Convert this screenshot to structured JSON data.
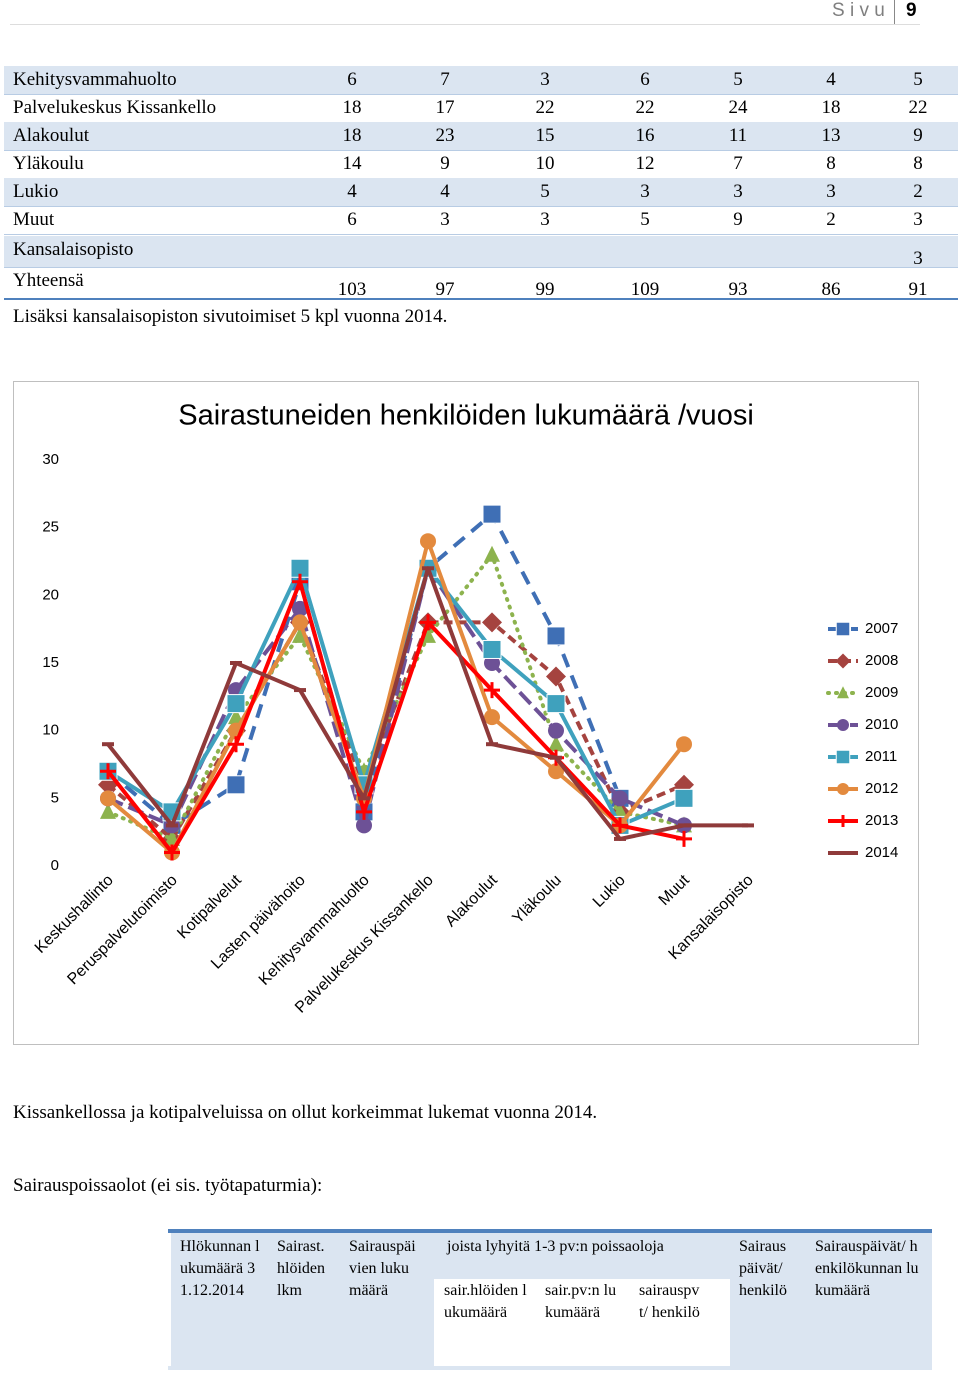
{
  "header": {
    "label": "S i v u",
    "page": "9"
  },
  "table": {
    "rows": [
      [
        "Kehitysvammahuolto",
        6,
        7,
        3,
        6,
        5,
        4,
        5
      ],
      [
        "Palvelukeskus Kissankello",
        18,
        17,
        22,
        22,
        24,
        18,
        22
      ],
      [
        "Alakoulut",
        18,
        23,
        15,
        16,
        11,
        13,
        9
      ],
      [
        "Yläkoulu",
        14,
        9,
        10,
        12,
        7,
        8,
        8
      ],
      [
        "Lukio",
        4,
        4,
        5,
        3,
        3,
        3,
        2
      ],
      [
        "Muut",
        6,
        3,
        3,
        5,
        9,
        2,
        3
      ],
      [
        "Kansalaisopisto",
        null,
        null,
        null,
        null,
        null,
        null,
        3
      ],
      [
        "Yhteensä",
        103,
        97,
        99,
        109,
        93,
        86,
        91
      ]
    ]
  },
  "note": "Lisäksi kansalaisopiston sivutoimiset 5 kpl vuonna 2014.",
  "chart_data": {
    "type": "line",
    "title": "Sairastuneiden henkilöiden lukumäärä /vuosi",
    "categories": [
      "Keskushallinto",
      "Peruspalvelutoimisto",
      "Kotipalvelut",
      "Lasten päivähoito",
      "Kehitysvammahuolto",
      "Palvelukeskus Kissankello",
      "Alakoulut",
      "Yläkoulu",
      "Lukio",
      "Muut",
      "Kansalaisopisto"
    ],
    "ylim": [
      0,
      30
    ],
    "yticks": [
      0,
      5,
      10,
      15,
      20,
      25,
      30
    ],
    "grid": false,
    "legend": "right",
    "series": [
      {
        "name": "2007",
        "color": "#3f6fb5",
        "marker": "square",
        "dash": "14,9",
        "values": [
          7,
          3,
          6,
          21,
          4,
          22,
          26,
          17,
          5,
          null,
          null
        ]
      },
      {
        "name": "2008",
        "color": "#a5433f",
        "marker": "diamond",
        "dash": "9,5",
        "values": [
          6,
          2,
          10,
          18,
          6,
          18,
          18,
          14,
          4,
          6,
          null
        ]
      },
      {
        "name": "2009",
        "color": "#8db34e",
        "marker": "triangle",
        "dash": "1,7",
        "values": [
          4,
          2,
          11,
          17,
          7,
          17,
          23,
          9,
          4,
          3,
          null
        ]
      },
      {
        "name": "2010",
        "color": "#6d5196",
        "marker": "circle",
        "dash": "16,6",
        "values": [
          5,
          3,
          13,
          19,
          3,
          22,
          15,
          10,
          5,
          3,
          null
        ]
      },
      {
        "name": "2011",
        "color": "#3fa1bd",
        "marker": "square",
        "dash": "none",
        "values": [
          7,
          4,
          12,
          22,
          6,
          22,
          16,
          12,
          3,
          5,
          null
        ]
      },
      {
        "name": "2012",
        "color": "#e38a3e",
        "marker": "circle",
        "dash": "none",
        "values": [
          5,
          1,
          10,
          18,
          5,
          24,
          11,
          7,
          3,
          9,
          null
        ]
      },
      {
        "name": "2013",
        "color": "#ff0000",
        "marker": "plus",
        "dash": "none",
        "values": [
          7,
          1,
          9,
          21,
          4,
          18,
          13,
          8,
          3,
          2,
          null
        ]
      },
      {
        "name": "2014",
        "color": "#8f3a3a",
        "marker": "dash",
        "dash": "none",
        "values": [
          9,
          3,
          15,
          13,
          5,
          22,
          9,
          8,
          2,
          3,
          3
        ]
      }
    ]
  },
  "paragraphs": [
    "Kissankellossa ja kotipalveluissa on ollut korkeimmat lukemat vuonna 2014.",
    "Sairauspoissaolot (ei sis. työtapaturmia):"
  ],
  "table2": {
    "headers": [
      "Hlökunnan lukumäärä 31.12.2014",
      "Sairast. hlöiden lkm",
      "Sairauspäivien lukumäärä",
      "joista lyhyitä 1-3 pv:n poissaoloja",
      "Sairauspäivät/ henkilö",
      "Sairauspäivät/ henkilökunnan lukumäärä"
    ],
    "subheaders": [
      "sair.hlöiden lukumäärä",
      "sair.pv:n lukumäärä",
      "sairauspvt/ henkilö"
    ]
  }
}
